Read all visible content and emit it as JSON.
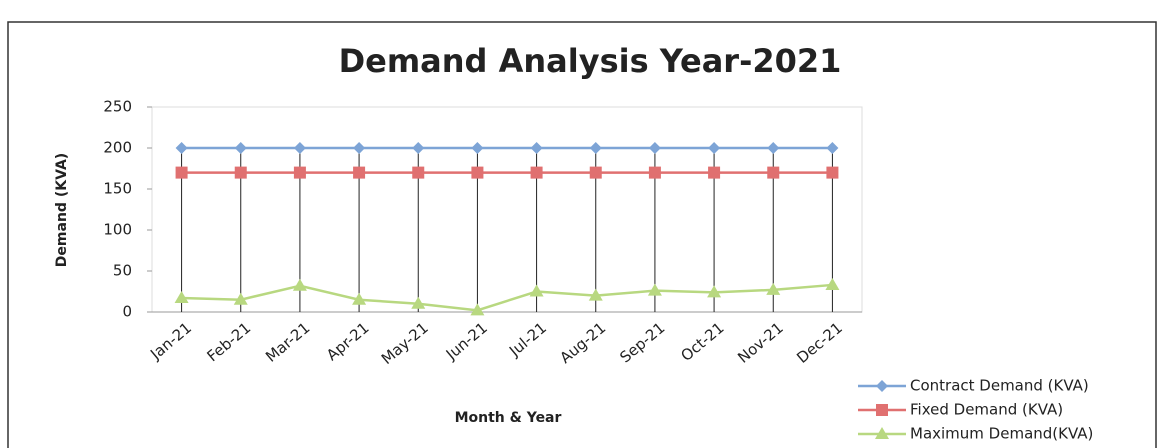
{
  "chart_data": {
    "type": "line",
    "title": "Demand Analysis Year-2021",
    "x_label": "Month & Year",
    "y_label": "Demand (KVA)",
    "categories": [
      "Jan-21",
      "Feb-21",
      "Mar-21",
      "Apr-21",
      "May-21",
      "Jun-21",
      "Jul-21",
      "Aug-21",
      "Sep-21",
      "Oct-21",
      "Nov-21",
      "Dec-21"
    ],
    "series": [
      {
        "name": "Contract Demand (KVA)",
        "color": "#7da4d6",
        "marker": "diamond",
        "values": [
          200,
          200,
          200,
          200,
          200,
          200,
          200,
          200,
          200,
          200,
          200,
          200
        ]
      },
      {
        "name": "Fixed Demand (KVA)",
        "color": "#e07070",
        "marker": "square",
        "values": [
          170,
          170,
          170,
          170,
          170,
          170,
          170,
          170,
          170,
          170,
          170,
          170
        ]
      },
      {
        "name": "Maximum Demand(KVA)",
        "color": "#b8d880",
        "marker": "triangle",
        "values": [
          17,
          15,
          32,
          15,
          10,
          2,
          25,
          20,
          26,
          24,
          27,
          33
        ]
      }
    ],
    "ylim": [
      0,
      250
    ],
    "yticks": [
      0,
      50,
      100,
      150,
      200,
      250
    ],
    "grid": false,
    "drop_lines": true,
    "legend": "bottom-right"
  }
}
